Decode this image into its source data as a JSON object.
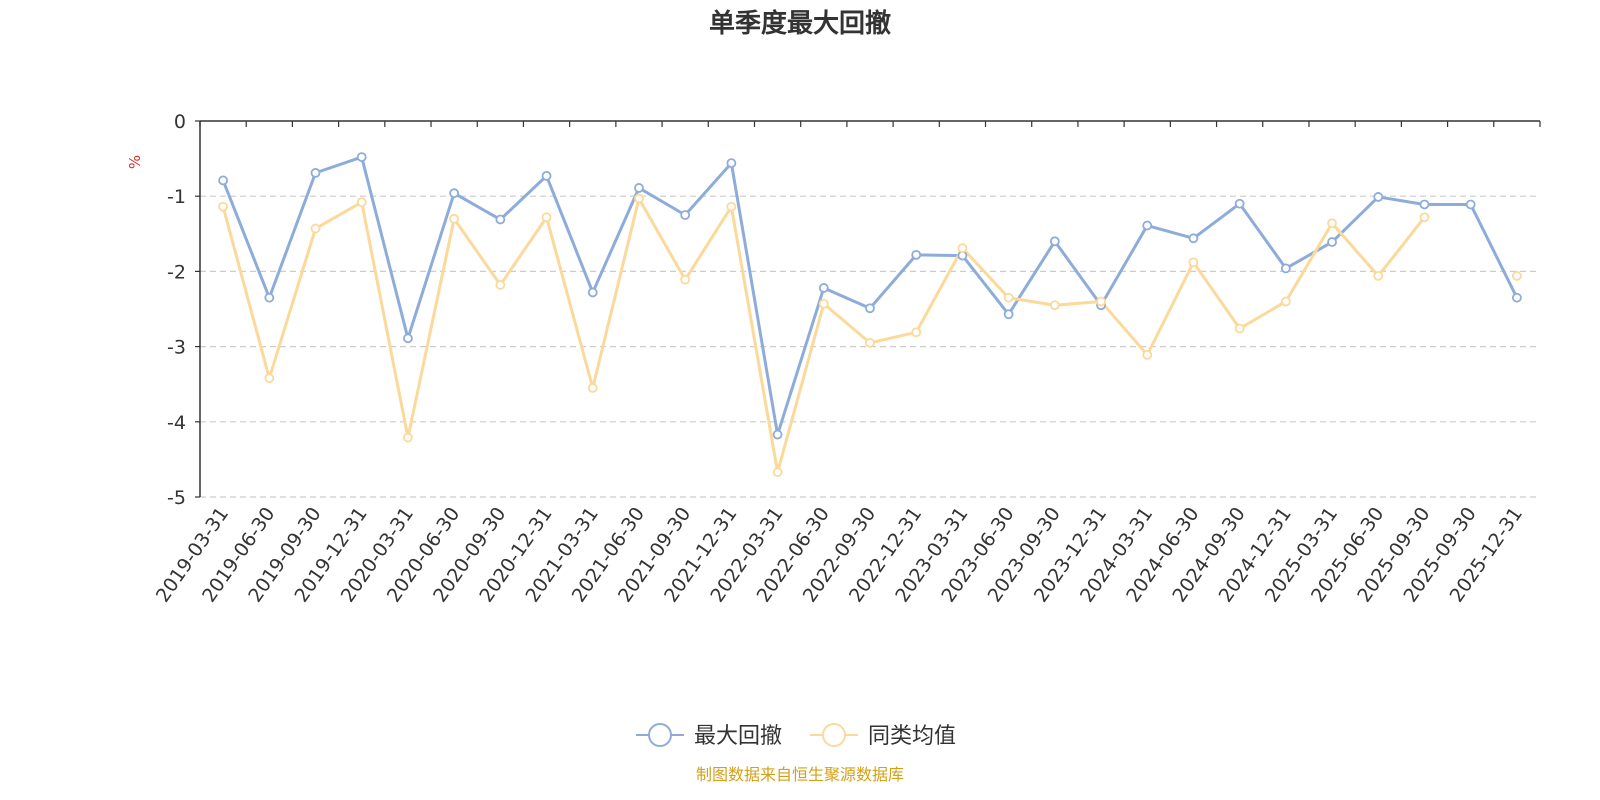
{
  "chart_data": {
    "type": "line",
    "title": "单季度最大回撤",
    "ylabel": "%",
    "ylim": [
      -5,
      0
    ],
    "yticks": [
      0,
      -1,
      -2,
      -3,
      -4,
      -5
    ],
    "grid": true,
    "legend_position": "bottom",
    "categories": [
      "2019-03-31",
      "2019-06-30",
      "2019-09-30",
      "2019-12-31",
      "2020-03-31",
      "2020-06-30",
      "2020-09-30",
      "2020-12-31",
      "2021-03-31",
      "2021-06-30",
      "2021-09-30",
      "2021-12-31",
      "2022-03-31",
      "2022-06-30",
      "2022-09-30",
      "2022-12-31",
      "2023-03-31",
      "2023-06-30",
      "2023-09-30",
      "2023-12-31",
      "2024-03-31",
      "2024-06-30",
      "2024-09-30",
      "2024-12-31",
      "2025-03-31",
      "2025-06-30",
      "2025-09-30",
      "2025-09-30",
      "2025-12-31"
    ],
    "series": [
      {
        "name": "最大回撤",
        "color": "#8eacd9",
        "values": [
          -0.79,
          -2.35,
          -0.69,
          -0.48,
          -2.89,
          -0.96,
          -1.31,
          -0.73,
          -2.28,
          -0.89,
          -1.25,
          -0.56,
          -4.17,
          -2.22,
          -2.49,
          -1.78,
          -1.79,
          -2.57,
          -1.6,
          -2.45,
          -1.39,
          -1.56,
          -1.1,
          -1.96,
          -1.61,
          -1.01,
          -1.11,
          -1.11,
          -2.35
        ]
      },
      {
        "name": "同类均值",
        "color": "#fbd99a",
        "values": [
          -1.14,
          -3.42,
          -1.43,
          -1.08,
          -4.21,
          -1.3,
          -2.18,
          -1.28,
          -3.55,
          -1.03,
          -2.11,
          -1.14,
          -4.67,
          -2.43,
          -2.95,
          -2.81,
          -1.69,
          -2.35,
          -2.45,
          -2.4,
          -3.11,
          -1.88,
          -2.76,
          -2.4,
          -1.36,
          -2.06,
          -1.28,
          null,
          -2.06
        ]
      }
    ]
  },
  "footer": {
    "source": "制图数据来自恒生聚源数据库"
  },
  "colors": {
    "title": "#333333",
    "axis": "#333333",
    "grid": "#cccccc",
    "unit": "#e0312b",
    "source": "#d4a017"
  }
}
